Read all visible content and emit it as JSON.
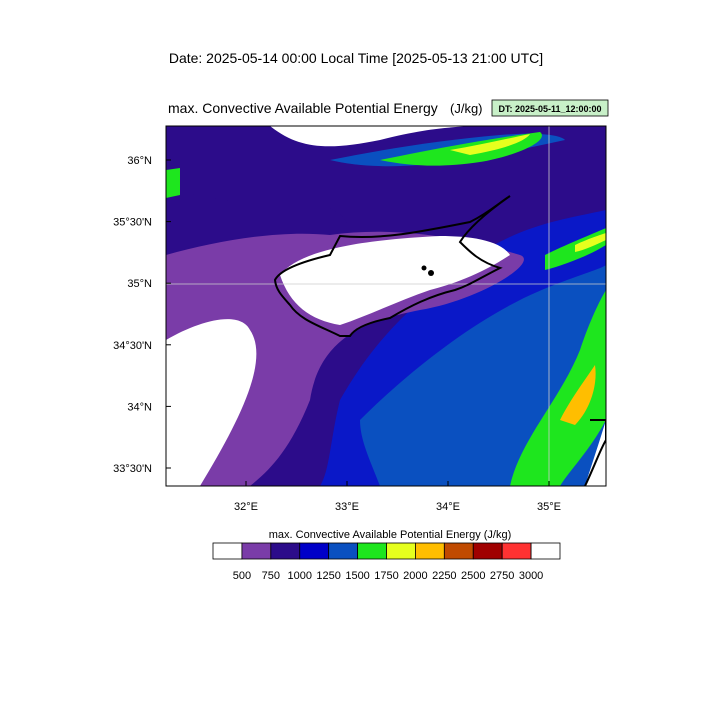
{
  "header": {
    "date": "Date: 2025-05-14  00:00 Local Time [2025-05-13  21:00 UTC]"
  },
  "map": {
    "title": "max. Convective Available Potential Energy",
    "units": "(J/kg)",
    "dt_label": "DT: 2025-05-11_12:00:00",
    "lat_ticks": [
      {
        "value": 36,
        "label": "36°N"
      },
      {
        "value": 35.5,
        "label": "35°30'N"
      },
      {
        "value": 35,
        "label": "35°N"
      },
      {
        "value": 34.5,
        "label": "34°30'N"
      },
      {
        "value": 34,
        "label": "34°N"
      },
      {
        "value": 33.5,
        "label": "33°30'N"
      }
    ],
    "lon_ticks": [
      {
        "value": 32,
        "label": "32°E"
      },
      {
        "value": 33,
        "label": "33°E"
      },
      {
        "value": 34,
        "label": "34°E"
      },
      {
        "value": 35,
        "label": "35°E"
      }
    ]
  },
  "colorbar": {
    "title": "max. Convective Available Potential Energy  (J/kg)",
    "levels": [
      500,
      750,
      1000,
      1250,
      1500,
      1750,
      2000,
      2250,
      2500,
      2750,
      3000
    ],
    "colors": [
      "#ffffff",
      "#7a3ca8",
      "#2c0c8a",
      "#0000c8",
      "#0a50c0",
      "#1ee61e",
      "#e6ff1e",
      "#ffbe00",
      "#c04a00",
      "#a00000",
      "#ff3232",
      "#ffffff"
    ]
  }
}
